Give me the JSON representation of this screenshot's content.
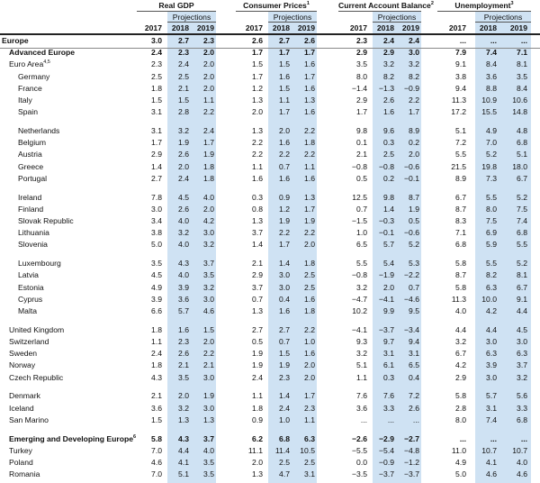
{
  "header": {
    "groups": [
      {
        "label": "Real GDP",
        "sup": ""
      },
      {
        "label": "Consumer Prices",
        "sup": "1"
      },
      {
        "label": "Current Account Balance",
        "sup": "2"
      },
      {
        "label": "Unemployment",
        "sup": "3"
      }
    ],
    "projections_label": "Projections",
    "years": [
      "2017",
      "2018",
      "2019"
    ]
  },
  "band_color": "#cfe2f3",
  "rows": [
    {
      "label": "Europe",
      "sup": "",
      "bold": true,
      "indent": 0,
      "values": [
        "3.0",
        "2.7",
        "2.3",
        "2.6",
        "2.7",
        "2.6",
        "2.3",
        "2.4",
        "2.4",
        "...",
        "...",
        "..."
      ]
    },
    {
      "label": "Advanced Europe",
      "sup": "",
      "bold": true,
      "indent": 1,
      "values": [
        "2.4",
        "2.3",
        "2.0",
        "1.7",
        "1.7",
        "1.7",
        "2.9",
        "2.9",
        "3.0",
        "7.9",
        "7.4",
        "7.1"
      ]
    },
    {
      "label": "Euro Area",
      "sup": "4,5",
      "bold": false,
      "indent": 1,
      "values": [
        "2.3",
        "2.4",
        "2.0",
        "1.5",
        "1.5",
        "1.6",
        "3.5",
        "3.2",
        "3.2",
        "9.1",
        "8.4",
        "8.1"
      ]
    },
    {
      "label": "Germany",
      "sup": "",
      "bold": false,
      "indent": 2,
      "values": [
        "2.5",
        "2.5",
        "2.0",
        "1.7",
        "1.6",
        "1.7",
        "8.0",
        "8.2",
        "8.2",
        "3.8",
        "3.6",
        "3.5"
      ]
    },
    {
      "label": "France",
      "sup": "",
      "bold": false,
      "indent": 2,
      "values": [
        "1.8",
        "2.1",
        "2.0",
        "1.2",
        "1.5",
        "1.6",
        "−1.4",
        "−1.3",
        "−0.9",
        "9.4",
        "8.8",
        "8.4"
      ]
    },
    {
      "label": "Italy",
      "sup": "",
      "bold": false,
      "indent": 2,
      "values": [
        "1.5",
        "1.5",
        "1.1",
        "1.3",
        "1.1",
        "1.3",
        "2.9",
        "2.6",
        "2.2",
        "11.3",
        "10.9",
        "10.6"
      ]
    },
    {
      "label": "Spain",
      "sup": "",
      "bold": false,
      "indent": 2,
      "values": [
        "3.1",
        "2.8",
        "2.2",
        "2.0",
        "1.7",
        "1.6",
        "1.7",
        "1.6",
        "1.7",
        "17.2",
        "15.5",
        "14.8"
      ]
    },
    {
      "label": "Netherlands",
      "sup": "",
      "bold": false,
      "indent": 2,
      "gap": true,
      "values": [
        "3.1",
        "3.2",
        "2.4",
        "1.3",
        "2.0",
        "2.2",
        "9.8",
        "9.6",
        "8.9",
        "5.1",
        "4.9",
        "4.8"
      ]
    },
    {
      "label": "Belgium",
      "sup": "",
      "bold": false,
      "indent": 2,
      "values": [
        "1.7",
        "1.9",
        "1.7",
        "2.2",
        "1.6",
        "1.8",
        "0.1",
        "0.3",
        "0.2",
        "7.2",
        "7.0",
        "6.8"
      ]
    },
    {
      "label": "Austria",
      "sup": "",
      "bold": false,
      "indent": 2,
      "values": [
        "2.9",
        "2.6",
        "1.9",
        "2.2",
        "2.2",
        "2.2",
        "2.1",
        "2.5",
        "2.0",
        "5.5",
        "5.2",
        "5.1"
      ]
    },
    {
      "label": "Greece",
      "sup": "",
      "bold": false,
      "indent": 2,
      "values": [
        "1.4",
        "2.0",
        "1.8",
        "1.1",
        "0.7",
        "1.1",
        "−0.8",
        "−0.8",
        "−0.6",
        "21.5",
        "19.8",
        "18.0"
      ]
    },
    {
      "label": "Portugal",
      "sup": "",
      "bold": false,
      "indent": 2,
      "values": [
        "2.7",
        "2.4",
        "1.8",
        "1.6",
        "1.6",
        "1.6",
        "0.5",
        "0.2",
        "−0.1",
        "8.9",
        "7.3",
        "6.7"
      ]
    },
    {
      "label": "Ireland",
      "sup": "",
      "bold": false,
      "indent": 2,
      "gap": true,
      "values": [
        "7.8",
        "4.5",
        "4.0",
        "0.3",
        "0.9",
        "1.3",
        "12.5",
        "9.8",
        "8.7",
        "6.7",
        "5.5",
        "5.2"
      ]
    },
    {
      "label": "Finland",
      "sup": "",
      "bold": false,
      "indent": 2,
      "values": [
        "3.0",
        "2.6",
        "2.0",
        "0.8",
        "1.2",
        "1.7",
        "0.7",
        "1.4",
        "1.9",
        "8.7",
        "8.0",
        "7.5"
      ]
    },
    {
      "label": "Slovak Republic",
      "sup": "",
      "bold": false,
      "indent": 2,
      "values": [
        "3.4",
        "4.0",
        "4.2",
        "1.3",
        "1.9",
        "1.9",
        "−1.5",
        "−0.3",
        "0.5",
        "8.3",
        "7.5",
        "7.4"
      ]
    },
    {
      "label": "Lithuania",
      "sup": "",
      "bold": false,
      "indent": 2,
      "values": [
        "3.8",
        "3.2",
        "3.0",
        "3.7",
        "2.2",
        "2.2",
        "1.0",
        "−0.1",
        "−0.6",
        "7.1",
        "6.9",
        "6.8"
      ]
    },
    {
      "label": "Slovenia",
      "sup": "",
      "bold": false,
      "indent": 2,
      "values": [
        "5.0",
        "4.0",
        "3.2",
        "1.4",
        "1.7",
        "2.0",
        "6.5",
        "5.7",
        "5.2",
        "6.8",
        "5.9",
        "5.5"
      ]
    },
    {
      "label": "Luxembourg",
      "sup": "",
      "bold": false,
      "indent": 2,
      "gap": true,
      "values": [
        "3.5",
        "4.3",
        "3.7",
        "2.1",
        "1.4",
        "1.8",
        "5.5",
        "5.4",
        "5.3",
        "5.8",
        "5.5",
        "5.2"
      ]
    },
    {
      "label": "Latvia",
      "sup": "",
      "bold": false,
      "indent": 2,
      "values": [
        "4.5",
        "4.0",
        "3.5",
        "2.9",
        "3.0",
        "2.5",
        "−0.8",
        "−1.9",
        "−2.2",
        "8.7",
        "8.2",
        "8.1"
      ]
    },
    {
      "label": "Estonia",
      "sup": "",
      "bold": false,
      "indent": 2,
      "values": [
        "4.9",
        "3.9",
        "3.2",
        "3.7",
        "3.0",
        "2.5",
        "3.2",
        "2.0",
        "0.7",
        "5.8",
        "6.3",
        "6.7"
      ]
    },
    {
      "label": "Cyprus",
      "sup": "",
      "bold": false,
      "indent": 2,
      "values": [
        "3.9",
        "3.6",
        "3.0",
        "0.7",
        "0.4",
        "1.6",
        "−4.7",
        "−4.1",
        "−4.6",
        "11.3",
        "10.0",
        "9.1"
      ]
    },
    {
      "label": "Malta",
      "sup": "",
      "bold": false,
      "indent": 2,
      "values": [
        "6.6",
        "5.7",
        "4.6",
        "1.3",
        "1.6",
        "1.8",
        "10.2",
        "9.9",
        "9.5",
        "4.0",
        "4.2",
        "4.4"
      ]
    },
    {
      "label": "United Kingdom",
      "sup": "",
      "bold": false,
      "indent": 1,
      "gap": true,
      "values": [
        "1.8",
        "1.6",
        "1.5",
        "2.7",
        "2.7",
        "2.2",
        "−4.1",
        "−3.7",
        "−3.4",
        "4.4",
        "4.4",
        "4.5"
      ]
    },
    {
      "label": "Switzerland",
      "sup": "",
      "bold": false,
      "indent": 1,
      "values": [
        "1.1",
        "2.3",
        "2.0",
        "0.5",
        "0.7",
        "1.0",
        "9.3",
        "9.7",
        "9.4",
        "3.2",
        "3.0",
        "3.0"
      ]
    },
    {
      "label": "Sweden",
      "sup": "",
      "bold": false,
      "indent": 1,
      "values": [
        "2.4",
        "2.6",
        "2.2",
        "1.9",
        "1.5",
        "1.6",
        "3.2",
        "3.1",
        "3.1",
        "6.7",
        "6.3",
        "6.3"
      ]
    },
    {
      "label": "Norway",
      "sup": "",
      "bold": false,
      "indent": 1,
      "values": [
        "1.8",
        "2.1",
        "2.1",
        "1.9",
        "1.9",
        "2.0",
        "5.1",
        "6.1",
        "6.5",
        "4.2",
        "3.9",
        "3.7"
      ]
    },
    {
      "label": "Czech Republic",
      "sup": "",
      "bold": false,
      "indent": 1,
      "values": [
        "4.3",
        "3.5",
        "3.0",
        "2.4",
        "2.3",
        "2.0",
        "1.1",
        "0.3",
        "0.4",
        "2.9",
        "3.0",
        "3.2"
      ]
    },
    {
      "label": "Denmark",
      "sup": "",
      "bold": false,
      "indent": 1,
      "gap": true,
      "values": [
        "2.1",
        "2.0",
        "1.9",
        "1.1",
        "1.4",
        "1.7",
        "7.6",
        "7.6",
        "7.2",
        "5.8",
        "5.7",
        "5.6"
      ]
    },
    {
      "label": "Iceland",
      "sup": "",
      "bold": false,
      "indent": 1,
      "values": [
        "3.6",
        "3.2",
        "3.0",
        "1.8",
        "2.4",
        "2.3",
        "3.6",
        "3.3",
        "2.6",
        "2.8",
        "3.1",
        "3.3"
      ]
    },
    {
      "label": "San Marino",
      "sup": "",
      "bold": false,
      "indent": 1,
      "values": [
        "1.5",
        "1.3",
        "1.3",
        "0.9",
        "1.0",
        "1.1",
        "...",
        "...",
        "...",
        "8.0",
        "7.4",
        "6.8"
      ]
    },
    {
      "label": "Emerging and Developing Europe",
      "sup": "6",
      "bold": true,
      "indent": 1,
      "gap": true,
      "values": [
        "5.8",
        "4.3",
        "3.7",
        "6.2",
        "6.8",
        "6.3",
        "−2.6",
        "−2.9",
        "−2.7",
        "...",
        "...",
        "..."
      ]
    },
    {
      "label": "Turkey",
      "sup": "",
      "bold": false,
      "indent": 1,
      "values": [
        "7.0",
        "4.4",
        "4.0",
        "11.1",
        "11.4",
        "10.5",
        "−5.5",
        "−5.4",
        "−4.8",
        "11.0",
        "10.7",
        "10.7"
      ]
    },
    {
      "label": "Poland",
      "sup": "",
      "bold": false,
      "indent": 1,
      "values": [
        "4.6",
        "4.1",
        "3.5",
        "2.0",
        "2.5",
        "2.5",
        "0.0",
        "−0.9",
        "−1.2",
        "4.9",
        "4.1",
        "4.0"
      ]
    },
    {
      "label": "Romania",
      "sup": "",
      "bold": false,
      "indent": 1,
      "values": [
        "7.0",
        "5.1",
        "3.5",
        "1.3",
        "4.7",
        "3.1",
        "−3.5",
        "−3.7",
        "−3.7",
        "5.0",
        "4.6",
        "4.6"
      ]
    }
  ]
}
